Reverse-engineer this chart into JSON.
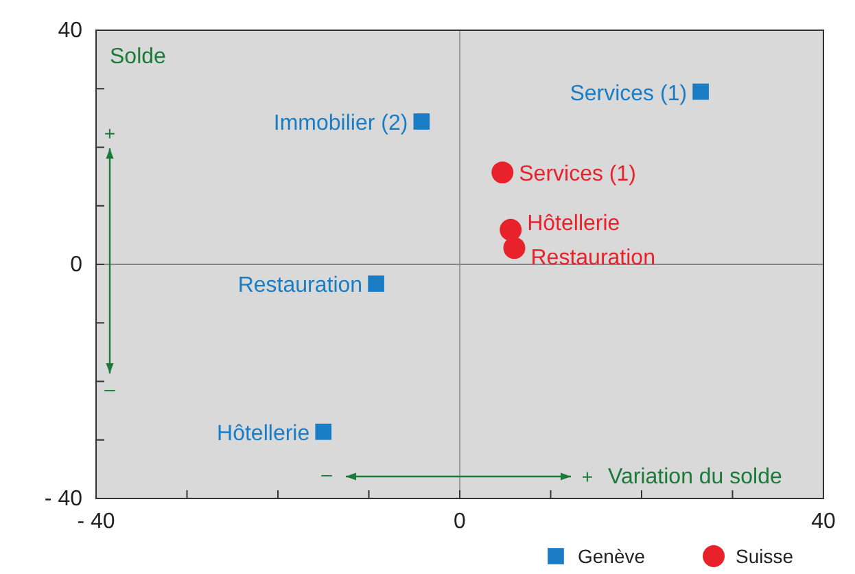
{
  "chart_data": {
    "type": "scatter",
    "xlim": [
      -40,
      40
    ],
    "ylim": [
      -40,
      40
    ],
    "xticks": [
      {
        "value": -40,
        "label": "- 40"
      },
      {
        "value": -30,
        "label": null
      },
      {
        "value": -20,
        "label": null
      },
      {
        "value": -10,
        "label": null
      },
      0,
      {
        "value": 10,
        "label": null
      },
      {
        "value": 20,
        "label": null
      },
      {
        "value": 30,
        "label": null
      },
      40
    ],
    "yticks": [
      {
        "value": -40,
        "label": "- 40"
      },
      {
        "value": -30,
        "label": null
      },
      {
        "value": -20,
        "label": null
      },
      {
        "value": -10,
        "label": null
      },
      0,
      {
        "value": 10,
        "label": null
      },
      {
        "value": 20,
        "label": null
      },
      {
        "value": 30,
        "label": null
      },
      40
    ],
    "grid": false,
    "legend": "bottom right",
    "ref_lines": [
      {
        "axis": "x",
        "value": 0,
        "label": null,
        "color": "#9a9a9a"
      },
      {
        "axis": "y",
        "value": 0,
        "label": null,
        "color": "#858585"
      }
    ],
    "series": [
      {
        "name": "Genève",
        "color": "#1a7dc4",
        "marker": "square",
        "x": [
          26.5,
          -4.2,
          -9.2,
          -15
        ],
        "values": [
          29.5,
          24.4,
          -3.3,
          -28.6
        ]
      },
      {
        "name": "Suisse",
        "color": "#e8222b",
        "marker": "circle",
        "x": [
          4.7,
          5.6,
          6.0
        ],
        "values": [
          15.7,
          5.9,
          2.8
        ]
      }
    ],
    "annotations": [
      {
        "text": "Services (1)",
        "x": 26.5,
        "y": 29.5
      },
      {
        "text": "Immobilier (2)",
        "x": -4.2,
        "y": 24.4
      },
      {
        "text": "Restauration",
        "x": -9.2,
        "y": -3.3
      },
      {
        "text": "Hôtellerie",
        "x": -15,
        "y": -28.6
      },
      {
        "text": "Services (1)",
        "x": 4.7,
        "y": 15.7
      },
      {
        "text": "Hôtellerie",
        "x": 5.6,
        "y": 5.9
      },
      {
        "text": "Restauration",
        "x": 6.0,
        "y": 2.8
      },
      "Solde",
      "+",
      "–",
      "–",
      "+",
      "Variation du solde"
    ]
  }
}
